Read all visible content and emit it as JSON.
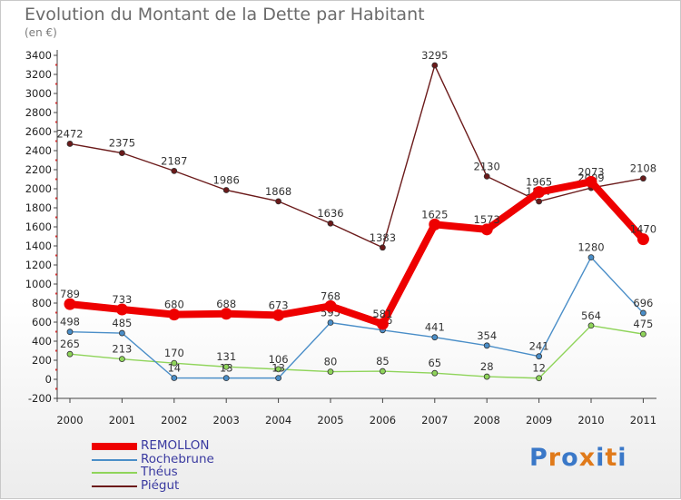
{
  "chart_data": {
    "type": "line",
    "title": "Evolution du Montant de la Dette par Habitant",
    "subtitle": "(en €)",
    "xlabel": "",
    "ylabel": "",
    "ylim": [
      -200,
      3400
    ],
    "yticks": [
      -200,
      0,
      200,
      400,
      600,
      800,
      1000,
      1200,
      1400,
      1600,
      1800,
      2000,
      2200,
      2400,
      2600,
      2800,
      3000,
      3200,
      3400
    ],
    "categories": [
      "2000",
      "2001",
      "2002",
      "2003",
      "2004",
      "2005",
      "2006",
      "2007",
      "2008",
      "2009",
      "2010",
      "2011"
    ],
    "grid": false,
    "legend_position": "bottom-left",
    "series": [
      {
        "name": "Piégut",
        "color": "#6b1a1a",
        "values": [
          2472,
          2375,
          2187,
          1986,
          1868,
          1636,
          1383,
          3295,
          2130,
          1867,
          2009,
          2108
        ]
      },
      {
        "name": "Théus",
        "color": "#8fd45a",
        "values": [
          265,
          213,
          170,
          131,
          106,
          80,
          85,
          65,
          28,
          12,
          564,
          475
        ]
      },
      {
        "name": "Rochebrune",
        "color": "#4a8ec8",
        "values": [
          498,
          485,
          14,
          13,
          13,
          595,
          516,
          441,
          354,
          241,
          1280,
          696
        ]
      },
      {
        "name": "REMOLLON",
        "color": "#ee0000",
        "values": [
          789,
          733,
          680,
          688,
          673,
          768,
          581,
          1625,
          1573,
          1965,
          2073,
          1470
        ]
      }
    ],
    "legend": [
      {
        "name": "REMOLLON",
        "color": "#ee0000"
      },
      {
        "name": "Rochebrune",
        "color": "#4a8ec8"
      },
      {
        "name": "Théus",
        "color": "#8fd45a"
      },
      {
        "name": "Piégut",
        "color": "#6b1a1a"
      }
    ]
  },
  "logo": {
    "text": "Proxiti",
    "letters": [
      {
        "char": "P",
        "color": "#3a78c8"
      },
      {
        "char": "r",
        "color": "#e07a1a"
      },
      {
        "char": "o",
        "color": "#3a78c8"
      },
      {
        "char": "x",
        "color": "#e07a1a"
      },
      {
        "char": "i",
        "color": "#3a78c8"
      },
      {
        "char": "t",
        "color": "#e07a1a"
      },
      {
        "char": "i",
        "color": "#3a78c8"
      }
    ]
  }
}
